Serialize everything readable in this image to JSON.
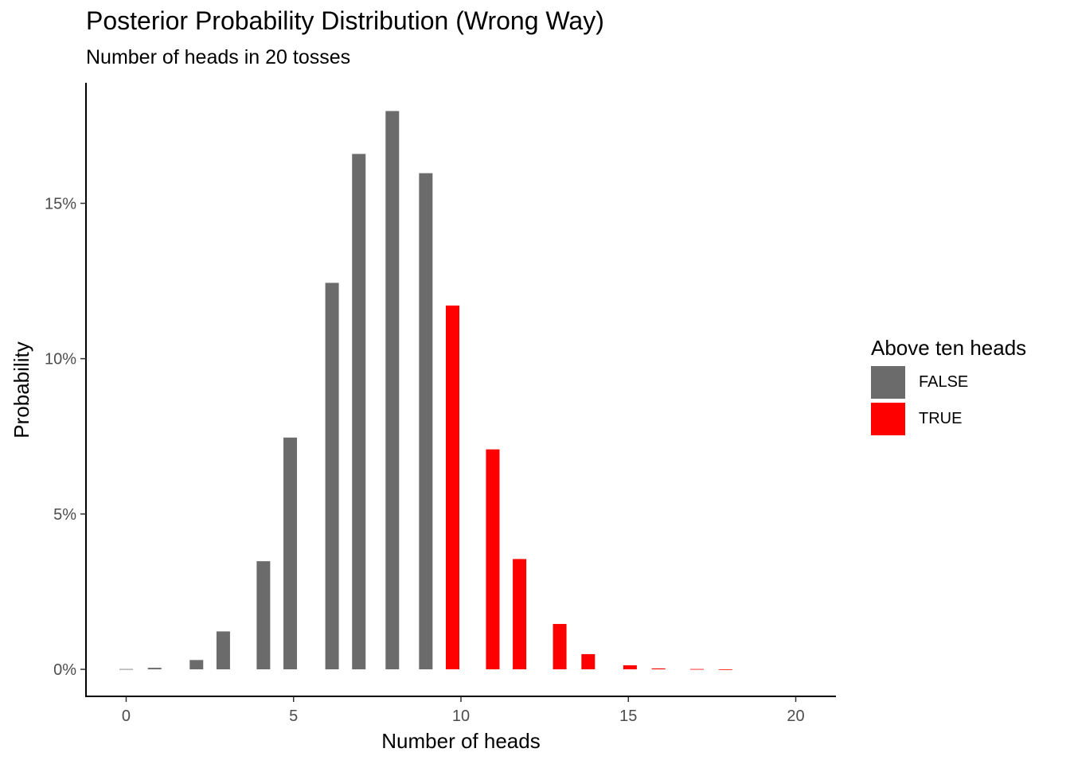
{
  "chart_data": {
    "type": "bar",
    "title": "Posterior Probability Distribution (Wrong Way)",
    "subtitle": "Number of heads in 20 tosses",
    "xlabel": "Number of heads",
    "ylabel": "Probability",
    "xlim": [
      -1.2,
      21.2
    ],
    "ylim": [
      -0.0087,
      0.1888
    ],
    "x_ticks": [
      0,
      5,
      10,
      15,
      20
    ],
    "x_tick_labels": [
      "0",
      "5",
      "10",
      "15",
      "20"
    ],
    "y_ticks": [
      0,
      0.05,
      0.1,
      0.15
    ],
    "y_tick_labels": [
      "0%",
      "5%",
      "10%",
      "15%"
    ],
    "grid": false,
    "legend": {
      "title": "Above ten heads",
      "position": "right",
      "entries": [
        {
          "label": "FALSE",
          "color": "#6b6b6b"
        },
        {
          "label": "TRUE",
          "color": "#ff0000"
        }
      ]
    },
    "bars": [
      {
        "x": 0.0,
        "value": 0.0001,
        "group": "FALSE"
      },
      {
        "x": 0.85,
        "value": 0.0005,
        "group": "FALSE"
      },
      {
        "x": 2.1,
        "value": 0.003,
        "group": "FALSE"
      },
      {
        "x": 2.9,
        "value": 0.0122,
        "group": "FALSE"
      },
      {
        "x": 4.1,
        "value": 0.0348,
        "group": "FALSE"
      },
      {
        "x": 4.9,
        "value": 0.0746,
        "group": "FALSE"
      },
      {
        "x": 6.15,
        "value": 0.1244,
        "group": "FALSE"
      },
      {
        "x": 6.95,
        "value": 0.1659,
        "group": "FALSE"
      },
      {
        "x": 7.95,
        "value": 0.1797,
        "group": "FALSE"
      },
      {
        "x": 8.95,
        "value": 0.1597,
        "group": "FALSE"
      },
      {
        "x": 9.75,
        "value": 0.1171,
        "group": "TRUE"
      },
      {
        "x": 10.95,
        "value": 0.0708,
        "group": "TRUE"
      },
      {
        "x": 11.75,
        "value": 0.0355,
        "group": "TRUE"
      },
      {
        "x": 12.95,
        "value": 0.0146,
        "group": "TRUE"
      },
      {
        "x": 13.8,
        "value": 0.0049,
        "group": "TRUE"
      },
      {
        "x": 15.05,
        "value": 0.0013,
        "group": "TRUE"
      },
      {
        "x": 15.9,
        "value": 0.0003,
        "group": "TRUE"
      },
      {
        "x": 17.05,
        "value": 0.0001,
        "group": "TRUE"
      },
      {
        "x": 17.9,
        "value": 2e-05,
        "group": "TRUE"
      }
    ]
  }
}
